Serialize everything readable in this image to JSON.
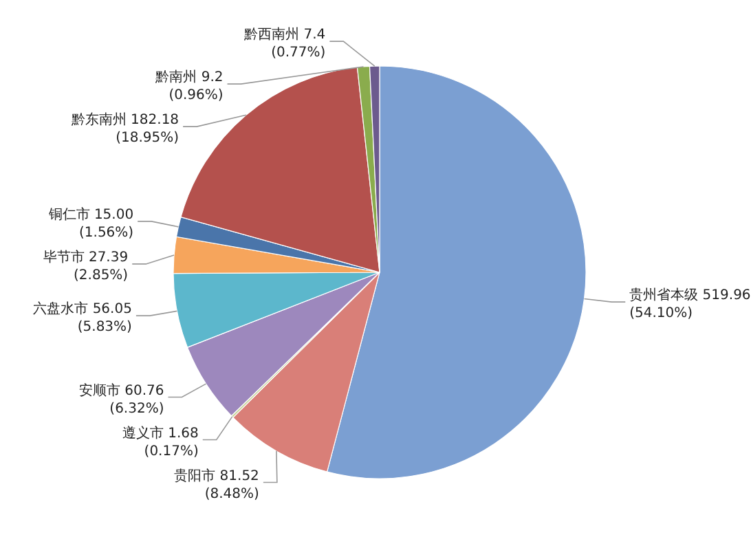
{
  "chart_data": {
    "type": "pie",
    "categories": [
      "贵州省本级",
      "贵阳市",
      "遵义市",
      "安顺市",
      "六盘水市",
      "毕节市",
      "铜仁市",
      "黔东南州",
      "黔南州",
      "黔西南州"
    ],
    "values": [
      519.96,
      81.52,
      1.68,
      60.76,
      56.05,
      27.39,
      15.0,
      182.18,
      9.2,
      7.4
    ],
    "value_labels": [
      "519.96\n(54.10%)",
      "81.52\n(8.48%)",
      "1.68\n(0.17%)",
      "60.76\n(6.32%)",
      "56.05\n(5.83%)",
      "27.39\n(2.85%)",
      "15.00\n(1.56%)",
      "182.18\n(18.95%)",
      "9.2\n(0.96%)",
      "7.4\n(0.77%)"
    ],
    "colors": [
      "#7b9fd2",
      "#d97f78",
      "#c8d49a",
      "#9d88bd",
      "#5cb7cc",
      "#f6a55c",
      "#4a75aa",
      "#b4514d",
      "#8aac4d",
      "#6c5b8e"
    ]
  }
}
